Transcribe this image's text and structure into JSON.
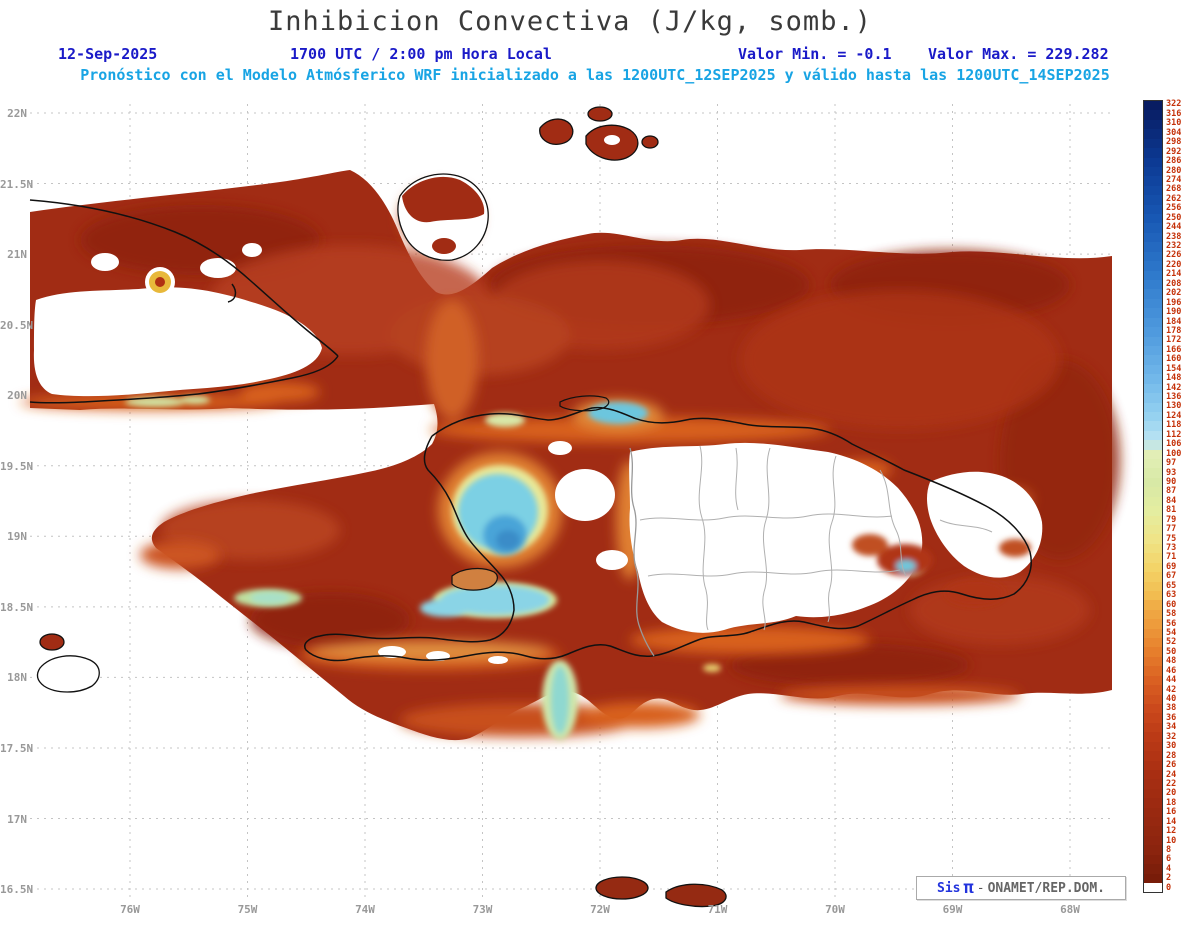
{
  "header": {
    "title": "Inhibicion Convectiva (J/kg, somb.)",
    "date": "12-Sep-2025",
    "time_local": "1700 UTC / 2:00 pm Hora Local",
    "valor_min_text": "Valor Min. = -0.1",
    "valor_max_text": "Valor Max. = 229.282",
    "forecast_line": "Pronóstico con el Modelo Atmósferico WRF inicializado a las 1200UTC_12SEP2025 y válido hasta las  1200UTC_14SEP2025"
  },
  "attribution": {
    "sis": "Sis",
    "pi": "π",
    "dash": "-",
    "org": "ONAMET/REP.DOM."
  },
  "chart_data": {
    "type": "heatmap",
    "title": "Inhibicion Convectiva (J/kg, somb.)",
    "units": "J/kg",
    "valor_min": -0.1,
    "valor_max": 229.282,
    "lat_ticks": [
      "22N",
      "21.5N",
      "21N",
      "20.5N",
      "20N",
      "19.5N",
      "19N",
      "18.5N",
      "18N",
      "17.5N",
      "17N",
      "16.5N"
    ],
    "lon_ticks": [
      "76W",
      "75W",
      "74W",
      "73W",
      "72W",
      "71W",
      "70W",
      "69W",
      "68W"
    ],
    "colorbar": {
      "label_color": "#c43008",
      "zero_color": "#ffffff",
      "values": [
        322,
        316,
        310,
        304,
        298,
        292,
        286,
        280,
        274,
        268,
        262,
        256,
        250,
        244,
        238,
        232,
        226,
        220,
        214,
        208,
        202,
        196,
        190,
        184,
        178,
        172,
        166,
        160,
        154,
        148,
        142,
        136,
        130,
        124,
        118,
        112,
        106,
        100,
        97,
        93,
        90,
        87,
        84,
        81,
        79,
        77,
        75,
        73,
        71,
        69,
        67,
        65,
        63,
        60,
        58,
        56,
        54,
        52,
        50,
        48,
        46,
        44,
        42,
        40,
        38,
        36,
        34,
        32,
        30,
        28,
        26,
        24,
        22,
        20,
        18,
        16,
        14,
        12,
        10,
        8,
        6,
        4,
        2,
        0
      ],
      "anchors": [
        {
          "v": 322,
          "c": "#081c62"
        },
        {
          "v": 286,
          "c": "#0c3a94"
        },
        {
          "v": 250,
          "c": "#1858b4"
        },
        {
          "v": 214,
          "c": "#2f7acc"
        },
        {
          "v": 178,
          "c": "#4f9ade"
        },
        {
          "v": 148,
          "c": "#72b8ea"
        },
        {
          "v": 124,
          "c": "#96d2f0"
        },
        {
          "v": 108,
          "c": "#bce4f2"
        },
        {
          "v": 100,
          "c": "#e2eeb6"
        },
        {
          "v": 90,
          "c": "#d8e9a6"
        },
        {
          "v": 81,
          "c": "#e4eda0"
        },
        {
          "v": 75,
          "c": "#efe488"
        },
        {
          "v": 69,
          "c": "#f3d468"
        },
        {
          "v": 63,
          "c": "#f2bc50"
        },
        {
          "v": 56,
          "c": "#ee9c3c"
        },
        {
          "v": 50,
          "c": "#e67e2c"
        },
        {
          "v": 44,
          "c": "#da6022"
        },
        {
          "v": 38,
          "c": "#cb491c"
        },
        {
          "v": 32,
          "c": "#bb3a16"
        },
        {
          "v": 24,
          "c": "#a82e12"
        },
        {
          "v": 16,
          "c": "#992910"
        },
        {
          "v": 8,
          "c": "#8b240e"
        },
        {
          "v": 2,
          "c": "#781c09"
        }
      ]
    },
    "notable_features": [
      {
        "region": "open ocean around Hispaniola and east of Cuba",
        "approx_value_jkg": "18-30 (dark red)"
      },
      {
        "region": "interior of Dominican Republic and eastern Cuba",
        "approx_value_jkg": "0 (white)"
      },
      {
        "region": "central Haiti / Gulf of Gonave",
        "approx_value_jkg": "100-140 (cyan-blue maximum, up to ~229)"
      },
      {
        "region": "coastal fringes",
        "approx_value_jkg": "40-80 (orange-yellow transition)"
      }
    ]
  }
}
